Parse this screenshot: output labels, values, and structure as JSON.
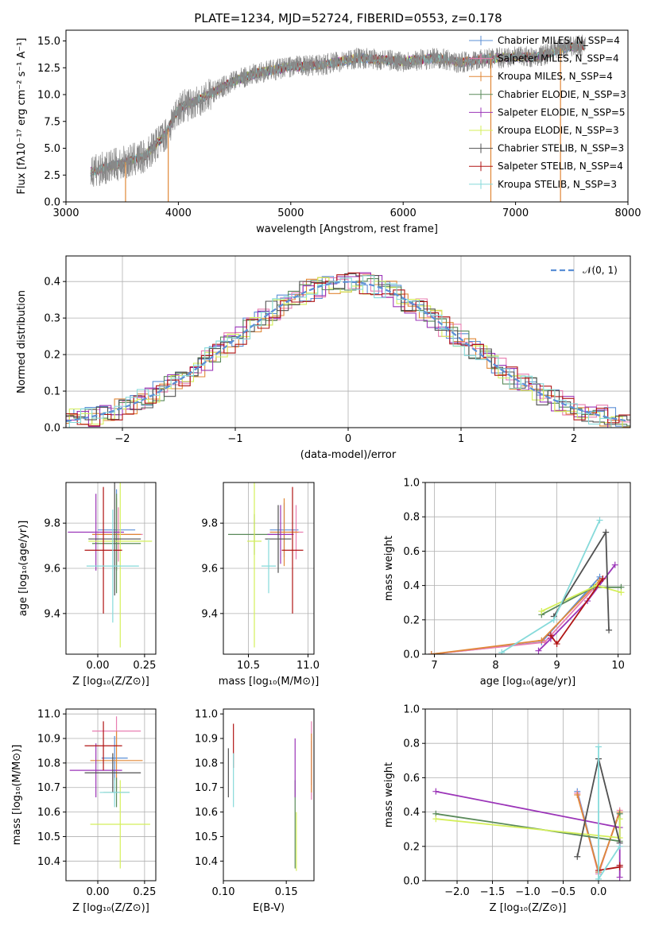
{
  "figure_title": "PLATE=1234, MJD=52724, FIBERID=0553, z=0.178",
  "colors": {
    "Chabrier MILES": "#5b8fd6",
    "Salpeter MILES": "#e87db0",
    "Kroupa MILES": "#e08838",
    "Chabrier ELODIE": "#5a8a5a",
    "Salpeter ELODIE": "#9b34b8",
    "Kroupa ELODIE": "#d4ef5a",
    "Chabrier STELIB": "#505050",
    "Salpeter STELIB": "#b01414",
    "Kroupa STELIB": "#86dada",
    "spectrum": "#888888",
    "gaussian": "#5b8fd6"
  },
  "chart_data": [
    {
      "id": "spectrum",
      "type": "line",
      "title": "PLATE=1234, MJD=52724, FIBERID=0553, z=0.178",
      "xlabel": "wavelength [Angstrom, rest frame]",
      "ylabel": "Flux [fλ10⁻¹⁷ erg cm⁻² s⁻¹ A⁻¹]",
      "xlim": [
        3000,
        8000
      ],
      "ylim": [
        0,
        16
      ],
      "xticks": [
        "3000",
        "4000",
        "5000",
        "6000",
        "7000",
        "8000"
      ],
      "yticks": [
        "0.0",
        "2.5",
        "5.0",
        "7.5",
        "10.0",
        "12.5",
        "15.0"
      ],
      "grid": false,
      "legend_position": "top-right",
      "legend": [
        "Chabrier MILES, N_SSP=4",
        "Salpeter MILES, N_SSP=4",
        "Kroupa MILES, N_SSP=4",
        "Chabrier ELODIE, N_SSP=3",
        "Salpeter ELODIE, N_SSP=5",
        "Kroupa ELODIE, N_SSP=3",
        "Chabrier STELIB, N_SSP=3",
        "Salpeter STELIB, N_SSP=4",
        "Kroupa STELIB, N_SSP=3"
      ],
      "trend_x": [
        3220,
        3500,
        3700,
        3900,
        4000,
        4200,
        4500,
        4700,
        5000,
        5300,
        5600,
        6000,
        6300,
        6500,
        6800,
        7000,
        7200,
        7400,
        7600
      ],
      "trend_y": [
        2.8,
        3.6,
        4.2,
        6.5,
        8.7,
        9.6,
        11.3,
        12.0,
        12.6,
        12.8,
        13.4,
        13.1,
        13.4,
        13.0,
        13.4,
        13.5,
        13.5,
        14.3,
        14.6
      ],
      "data_range_x": [
        3220,
        7620
      ],
      "vertical_drops_x": [
        3530,
        3910,
        6780,
        7400
      ]
    },
    {
      "id": "residuals",
      "type": "histogram",
      "xlabel": "(data-model)/error",
      "ylabel": "Normed distribution",
      "xlim": [
        -2.5,
        2.5
      ],
      "ylim": [
        0,
        0.47
      ],
      "xticks": [
        "−2",
        "−1",
        "0",
        "1",
        "2"
      ],
      "yticks": [
        "0.0",
        "0.1",
        "0.2",
        "0.3",
        "0.4"
      ],
      "grid": true,
      "legend": [
        "𝒩(0, 1)"
      ],
      "legend_position": "top-right",
      "gaussian": {
        "mu": 0,
        "sigma": 1
      }
    },
    {
      "id": "age-vs-Z",
      "type": "errorbar",
      "xlabel": "Z [log₁₀(Z/Z⊙)]",
      "ylabel": "age  [log₁₀(age/yr)]",
      "xlim": [
        -0.17,
        0.31
      ],
      "ylim": [
        9.22,
        9.98
      ],
      "xticks": [
        "0.00",
        "0.25"
      ],
      "yticks": [
        "9.4",
        "9.6",
        "9.8"
      ],
      "grid": true,
      "points": [
        {
          "model": "Chabrier MILES",
          "x": 0.1,
          "y": 9.77,
          "xerr": 0.1,
          "yerr": 0.18
        },
        {
          "model": "Salpeter MILES",
          "x": 0.11,
          "y": 9.75,
          "xerr": 0.13,
          "yerr": 0.12
        },
        {
          "model": "Kroupa MILES",
          "x": 0.1,
          "y": 9.75,
          "xerr": 0.13,
          "yerr": 0.16
        },
        {
          "model": "Chabrier ELODIE",
          "x": 0.1,
          "y": 9.71,
          "xerr": 0.13,
          "yerr": 0.22
        },
        {
          "model": "Salpeter ELODIE",
          "x": -0.01,
          "y": 9.76,
          "xerr": 0.15,
          "yerr": 0.17
        },
        {
          "model": "Kroupa ELODIE",
          "x": 0.12,
          "y": 9.72,
          "xerr": 0.17,
          "yerr": 0.47
        },
        {
          "model": "Chabrier STELIB",
          "x": 0.09,
          "y": 9.73,
          "xerr": 0.14,
          "yerr": 0.25
        },
        {
          "model": "Salpeter STELIB",
          "x": 0.03,
          "y": 9.68,
          "xerr": 0.1,
          "yerr": 0.28
        },
        {
          "model": "Kroupa STELIB",
          "x": 0.08,
          "y": 9.61,
          "xerr": 0.14,
          "yerr": 0.25
        }
      ]
    },
    {
      "id": "age-vs-mass",
      "type": "errorbar",
      "xlabel": "mass [log₁₀(M/M⊙)]",
      "ylabel": "",
      "xlim": [
        10.29,
        11.05
      ],
      "ylim": [
        9.22,
        9.98
      ],
      "xticks": [
        "10.5",
        "11.0"
      ],
      "yticks": [
        "9.4",
        "9.6",
        "9.8"
      ],
      "grid": true,
      "points": [
        {
          "model": "Chabrier MILES",
          "x": 10.8,
          "y": 9.77,
          "xerr": 0.12,
          "yerr": 0.12
        },
        {
          "model": "Salpeter MILES",
          "x": 10.9,
          "y": 9.76,
          "xerr": 0.06,
          "yerr": 0.12
        },
        {
          "model": "Kroupa MILES",
          "x": 10.8,
          "y": 9.76,
          "xerr": 0.12,
          "yerr": 0.15
        },
        {
          "model": "Chabrier ELODIE",
          "x": 10.55,
          "y": 9.75,
          "xerr": 0.22,
          "yerr": 0.09
        },
        {
          "model": "Salpeter ELODIE",
          "x": 10.77,
          "y": 9.75,
          "xerr": 0.11,
          "yerr": 0.13
        },
        {
          "model": "Kroupa ELODIE",
          "x": 10.55,
          "y": 9.72,
          "xerr": 0.06,
          "yerr": 0.47
        },
        {
          "model": "Chabrier STELIB",
          "x": 10.75,
          "y": 9.73,
          "xerr": 0.11,
          "yerr": 0.15
        },
        {
          "model": "Salpeter STELIB",
          "x": 10.87,
          "y": 9.68,
          "xerr": 0.09,
          "yerr": 0.28
        },
        {
          "model": "Kroupa STELIB",
          "x": 10.67,
          "y": 9.61,
          "xerr": 0.06,
          "yerr": 0.12
        }
      ]
    },
    {
      "id": "mass-weight-vs-age",
      "type": "line",
      "xlabel": "age  [log₁₀(age/yr)]",
      "ylabel": "mass weight",
      "xlim": [
        6.85,
        10.2
      ],
      "ylim": [
        0,
        1.0
      ],
      "xticks": [
        "7",
        "8",
        "9",
        "10"
      ],
      "yticks": [
        "0.0",
        "0.2",
        "0.4",
        "0.6",
        "0.8",
        "1.0"
      ],
      "grid": true,
      "series": [
        {
          "model": "Chabrier MILES",
          "x": [
            6.95,
            8.75,
            9.7
          ],
          "y": [
            0.0,
            0.07,
            0.45
          ]
        },
        {
          "model": "Salpeter MILES",
          "x": [
            6.95,
            8.8,
            9.75
          ],
          "y": [
            0.0,
            0.07,
            0.44
          ]
        },
        {
          "model": "Kroupa MILES",
          "x": [
            6.95,
            8.75,
            9.7
          ],
          "y": [
            0.0,
            0.08,
            0.43
          ]
        },
        {
          "model": "Chabrier ELODIE",
          "x": [
            8.75,
            9.6,
            10.05
          ],
          "y": [
            0.23,
            0.39,
            0.39
          ]
        },
        {
          "model": "Salpeter ELODIE",
          "x": [
            8.7,
            8.9,
            9.5,
            9.95
          ],
          "y": [
            0.02,
            0.09,
            0.31,
            0.52
          ]
        },
        {
          "model": "Kroupa ELODIE",
          "x": [
            8.75,
            9.65,
            10.05
          ],
          "y": [
            0.25,
            0.4,
            0.36
          ]
        },
        {
          "model": "Chabrier STELIB",
          "x": [
            8.95,
            9.8,
            9.85
          ],
          "y": [
            0.22,
            0.71,
            0.14
          ]
        },
        {
          "model": "Salpeter STELIB",
          "x": [
            8.9,
            9.0,
            9.75
          ],
          "y": [
            0.11,
            0.06,
            0.44
          ]
        },
        {
          "model": "Kroupa STELIB",
          "x": [
            8.1,
            8.95,
            9.7
          ],
          "y": [
            0.01,
            0.2,
            0.78
          ]
        }
      ]
    },
    {
      "id": "mass-vs-Z",
      "type": "errorbar",
      "xlabel": "Z [log₁₀(Z/Z⊙)]",
      "ylabel": "mass [log₁₀(M/M⊙)]",
      "xlim": [
        -0.17,
        0.31
      ],
      "ylim": [
        10.32,
        11.02
      ],
      "xticks": [
        "0.00",
        "0.25"
      ],
      "yticks": [
        "10.4",
        "10.5",
        "10.6",
        "10.7",
        "10.8",
        "10.9",
        "11.0"
      ],
      "grid": true,
      "points": [
        {
          "model": "Chabrier MILES",
          "x": 0.09,
          "y": 10.82,
          "xerr": 0.07,
          "yerr": 0.09
        },
        {
          "model": "Salpeter MILES",
          "x": 0.1,
          "y": 10.93,
          "xerr": 0.13,
          "yerr": 0.06
        },
        {
          "model": "Kroupa MILES",
          "x": 0.1,
          "y": 10.81,
          "xerr": 0.14,
          "yerr": 0.12
        },
        {
          "model": "Chabrier ELODIE",
          "x": 0.1,
          "y": 10.68,
          "xerr": 0.07,
          "yerr": 0.06
        },
        {
          "model": "Salpeter ELODIE",
          "x": -0.01,
          "y": 10.77,
          "xerr": 0.14,
          "yerr": 0.11
        },
        {
          "model": "Kroupa ELODIE",
          "x": 0.12,
          "y": 10.55,
          "xerr": 0.16,
          "yerr": 0.18
        },
        {
          "model": "Chabrier STELIB",
          "x": 0.08,
          "y": 10.76,
          "xerr": 0.15,
          "yerr": 0.08
        },
        {
          "model": "Salpeter STELIB",
          "x": 0.03,
          "y": 10.87,
          "xerr": 0.1,
          "yerr": 0.1
        },
        {
          "model": "Kroupa STELIB",
          "x": 0.09,
          "y": 10.68,
          "xerr": 0.08,
          "yerr": 0.06
        }
      ]
    },
    {
      "id": "mass-vs-EBV",
      "type": "errorbar",
      "xlabel": "E(B-V)",
      "ylabel": "",
      "xlim": [
        0.1,
        0.172
      ],
      "ylim": [
        10.32,
        11.02
      ],
      "xticks": [
        "0.10",
        "0.15"
      ],
      "yticks": [
        "10.4",
        "10.5",
        "10.6",
        "10.7",
        "10.8",
        "10.9",
        "11.0"
      ],
      "grid": false,
      "points": [
        {
          "model": "Chabrier MILES",
          "x": 0.17,
          "y": 10.8,
          "xerr": 0,
          "yerr": 0.09
        },
        {
          "model": "Salpeter MILES",
          "x": 0.17,
          "y": 10.81,
          "xerr": 0,
          "yerr": 0.16
        },
        {
          "model": "Kroupa MILES",
          "x": 0.17,
          "y": 10.8,
          "xerr": 0,
          "yerr": 0.12
        },
        {
          "model": "Chabrier ELODIE",
          "x": 0.157,
          "y": 10.55,
          "xerr": 0,
          "yerr": 0.18
        },
        {
          "model": "Salpeter ELODIE",
          "x": 0.157,
          "y": 10.78,
          "xerr": 0,
          "yerr": 0.12
        },
        {
          "model": "Kroupa ELODIE",
          "x": 0.158,
          "y": 10.48,
          "xerr": 0,
          "yerr": 0.12
        },
        {
          "model": "Chabrier STELIB",
          "x": 0.104,
          "y": 10.76,
          "xerr": 0,
          "yerr": 0.1
        },
        {
          "model": "Salpeter STELIB",
          "x": 0.108,
          "y": 10.87,
          "xerr": 0,
          "yerr": 0.09
        },
        {
          "model": "Kroupa STELIB",
          "x": 0.108,
          "y": 10.73,
          "xerr": 0,
          "yerr": 0.11
        }
      ]
    },
    {
      "id": "mass-weight-vs-Z",
      "type": "line",
      "xlabel": "Z [log₁₀(Z/Z⊙)]",
      "ylabel": "mass weight",
      "xlim": [
        -2.45,
        0.45
      ],
      "ylim": [
        0,
        1.0
      ],
      "xticks": [
        "−2.0",
        "−1.5",
        "−1.0",
        "−0.5",
        "0.0"
      ],
      "yticks": [
        "0.0",
        "0.2",
        "0.4",
        "0.6",
        "0.8",
        "1.0"
      ],
      "grid": true,
      "series": [
        {
          "model": "Chabrier MILES",
          "x": [
            -0.3,
            0.0,
            0.3
          ],
          "y": [
            0.52,
            0.05,
            0.4
          ]
        },
        {
          "model": "Salpeter MILES",
          "x": [
            -0.3,
            0.0,
            0.3
          ],
          "y": [
            0.51,
            0.04,
            0.41
          ]
        },
        {
          "model": "Kroupa MILES",
          "x": [
            -0.3,
            0.0,
            0.3
          ],
          "y": [
            0.5,
            0.05,
            0.4
          ]
        },
        {
          "model": "Chabrier ELODIE",
          "x": [
            -2.3,
            0.3,
            0.3
          ],
          "y": [
            0.39,
            0.23,
            0.39
          ]
        },
        {
          "model": "Salpeter ELODIE",
          "x": [
            -2.3,
            0.3,
            0.3,
            0.3
          ],
          "y": [
            0.52,
            0.31,
            0.02,
            0.09
          ]
        },
        {
          "model": "Kroupa ELODIE",
          "x": [
            -2.3,
            0.3,
            0.3
          ],
          "y": [
            0.36,
            0.25,
            0.36
          ]
        },
        {
          "model": "Chabrier STELIB",
          "x": [
            -0.3,
            0.0,
            0.3
          ],
          "y": [
            0.14,
            0.71,
            0.22
          ]
        },
        {
          "model": "Salpeter STELIB",
          "x": [
            0.0,
            0.3,
            0.3
          ],
          "y": [
            0.06,
            0.08,
            0.09
          ]
        },
        {
          "model": "Kroupa STELIB",
          "x": [
            0.0,
            0.0,
            0.3
          ],
          "y": [
            0.78,
            0.01,
            0.2
          ]
        }
      ]
    }
  ]
}
